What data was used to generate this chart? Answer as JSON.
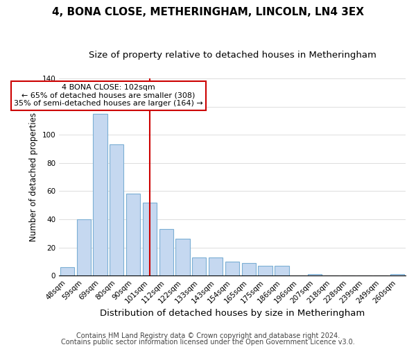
{
  "title": "4, BONA CLOSE, METHERINGHAM, LINCOLN, LN4 3EX",
  "subtitle": "Size of property relative to detached houses in Metheringham",
  "xlabel": "Distribution of detached houses by size in Metheringham",
  "ylabel": "Number of detached properties",
  "bar_labels": [
    "48sqm",
    "59sqm",
    "69sqm",
    "80sqm",
    "90sqm",
    "101sqm",
    "112sqm",
    "122sqm",
    "133sqm",
    "143sqm",
    "154sqm",
    "165sqm",
    "175sqm",
    "186sqm",
    "196sqm",
    "207sqm",
    "218sqm",
    "228sqm",
    "239sqm",
    "249sqm",
    "260sqm"
  ],
  "bar_values": [
    6,
    40,
    115,
    93,
    58,
    52,
    33,
    26,
    13,
    13,
    10,
    9,
    7,
    7,
    0,
    1,
    0,
    0,
    0,
    0,
    1
  ],
  "bar_color": "#c5d8f0",
  "bar_edge_color": "#7bafd4",
  "vline_x_index": 5,
  "vline_color": "#cc0000",
  "ylim": [
    0,
    140
  ],
  "annotation_title": "4 BONA CLOSE: 102sqm",
  "annotation_line1": "← 65% of detached houses are smaller (308)",
  "annotation_line2": "35% of semi-detached houses are larger (164) →",
  "annotation_box_color": "#ffffff",
  "annotation_box_edge_color": "#cc0000",
  "footer1": "Contains HM Land Registry data © Crown copyright and database right 2024.",
  "footer2": "Contains public sector information licensed under the Open Government Licence v3.0.",
  "title_fontsize": 11,
  "subtitle_fontsize": 9.5,
  "xlabel_fontsize": 9.5,
  "ylabel_fontsize": 8.5,
  "tick_fontsize": 7.5,
  "footer_fontsize": 7
}
